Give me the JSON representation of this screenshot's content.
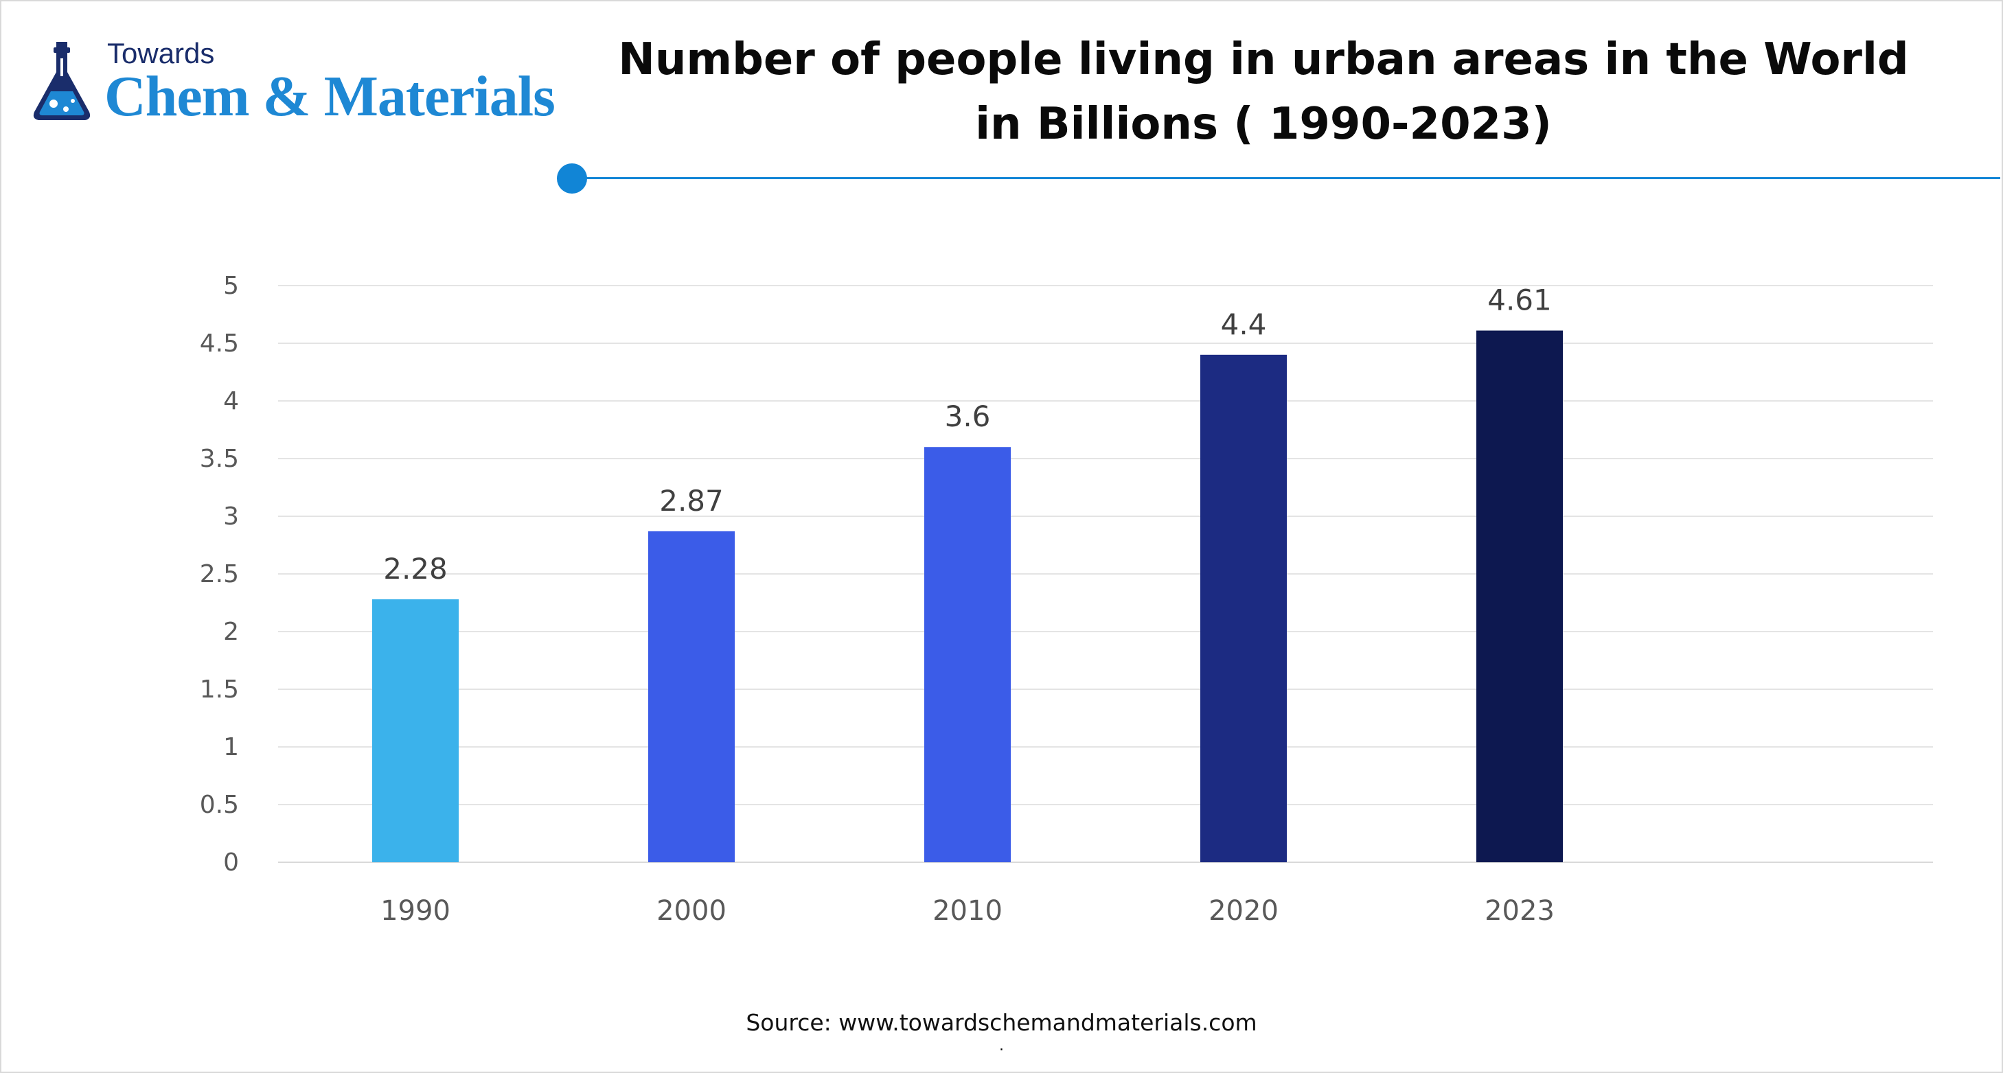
{
  "logo": {
    "top_text": "Towards",
    "main_text": "Chem & Materials",
    "icon": "flask-icon"
  },
  "header": {
    "title": "Number of people living in urban areas in the World in Billions ( 1990-2023)",
    "accent_color": "#1185d6"
  },
  "chart_data": {
    "type": "bar",
    "title": "Number of people living in urban areas in the World in Billions ( 1990-2023)",
    "categories": [
      "1990",
      "2000",
      "2010",
      "2020",
      "2023"
    ],
    "values": [
      2.28,
      2.87,
      3.6,
      4.4,
      4.61
    ],
    "value_labels": [
      "2.28",
      "2.87",
      "3.6",
      "4.4",
      "4.61"
    ],
    "colors": [
      "#3bb2eb",
      "#3b5ce8",
      "#3b5ce8",
      "#1c2b82",
      "#0d1850"
    ],
    "ylim": [
      0,
      5
    ],
    "yticks": [
      "0",
      "0.5",
      "1",
      "1.5",
      "2",
      "2.5",
      "3",
      "3.5",
      "4",
      "4.5",
      "5"
    ],
    "xlabel": "",
    "ylabel": "",
    "grid": true,
    "legend": "none"
  },
  "footer": {
    "source": "Source: www.towardschemandmaterials.com",
    "mark": "."
  }
}
